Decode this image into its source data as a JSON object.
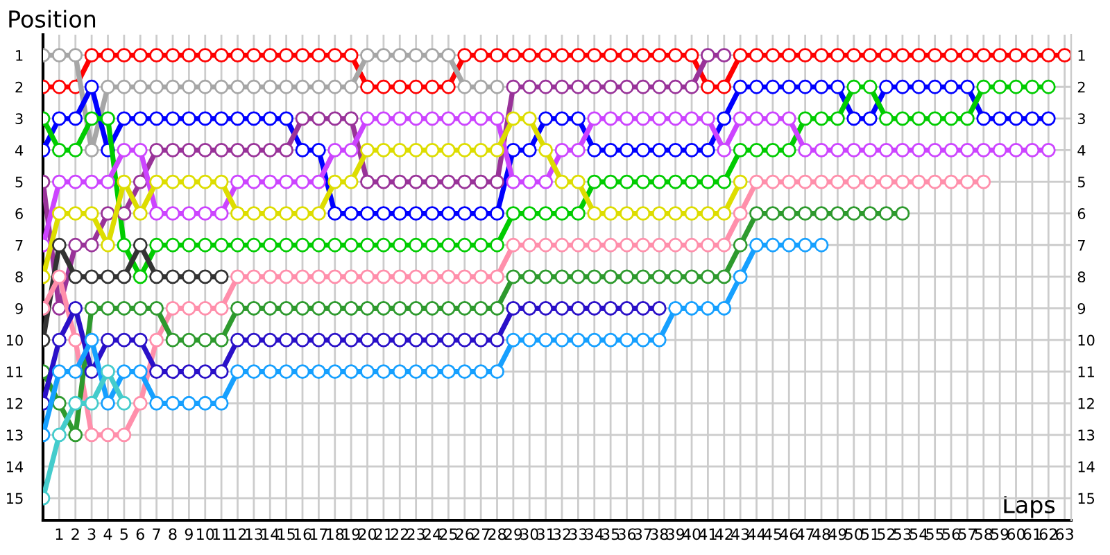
{
  "chart_data": {
    "type": "line",
    "xlabel": "Laps",
    "ylabel": "Position",
    "x": [
      0,
      1,
      2,
      3,
      4,
      5,
      6,
      7,
      8,
      9,
      10,
      11,
      12,
      13,
      14,
      15,
      16,
      17,
      18,
      19,
      20,
      21,
      22,
      23,
      24,
      25,
      26,
      27,
      28,
      29,
      30,
      31,
      32,
      33,
      34,
      35,
      36,
      37,
      38,
      39,
      40,
      41,
      42,
      43,
      44,
      45,
      46,
      47,
      48,
      49,
      50,
      51,
      52,
      53,
      54,
      55,
      56,
      57,
      58,
      59,
      60,
      61,
      62,
      63
    ],
    "xlim": [
      0,
      63.4
    ],
    "xticks": [
      1,
      2,
      3,
      4,
      5,
      6,
      7,
      8,
      9,
      10,
      11,
      12,
      13,
      14,
      15,
      16,
      17,
      18,
      19,
      20,
      21,
      22,
      23,
      24,
      25,
      26,
      27,
      28,
      29,
      30,
      31,
      32,
      33,
      34,
      35,
      36,
      37,
      38,
      39,
      40,
      41,
      42,
      43,
      44,
      45,
      46,
      47,
      48,
      49,
      50,
      51,
      52,
      53,
      54,
      55,
      56,
      57,
      58,
      59,
      60,
      61,
      62,
      63
    ],
    "ylim": [
      15.7,
      0.35
    ],
    "yticks": [
      1,
      2,
      3,
      4,
      5,
      6,
      7,
      8,
      9,
      10,
      11,
      12,
      13,
      14,
      15
    ],
    "y2lim": [
      15.7,
      0.35
    ],
    "y2ticks": [
      1,
      2,
      3,
      4,
      5,
      6,
      7,
      8,
      9,
      10,
      11,
      12,
      13,
      14,
      15
    ],
    "grid": true,
    "legend": false,
    "marker": "circle",
    "line_style": "solid",
    "series": [
      {
        "color": "#ff0000",
        "values": [
          2,
          2,
          2,
          1,
          1,
          1,
          1,
          1,
          1,
          1,
          1,
          1,
          1,
          1,
          1,
          1,
          1,
          1,
          1,
          1,
          2,
          2,
          2,
          2,
          2,
          2,
          1,
          1,
          1,
          1,
          1,
          1,
          1,
          1,
          1,
          1,
          1,
          1,
          1,
          1,
          1,
          2,
          2,
          1,
          1,
          1,
          1,
          1,
          1,
          1,
          1,
          1,
          1,
          1,
          1,
          1,
          1,
          1,
          1,
          1,
          1,
          1,
          1,
          1
        ]
      },
      {
        "color": "#a6a6a6",
        "values": [
          1,
          1,
          1,
          4,
          2,
          2,
          2,
          2,
          2,
          2,
          2,
          2,
          2,
          2,
          2,
          2,
          2,
          2,
          2,
          2,
          1,
          1,
          1,
          1,
          1,
          1,
          2,
          2,
          2,
          null,
          null,
          null,
          null,
          null,
          null,
          null,
          null,
          null,
          null,
          null,
          null,
          null,
          null,
          null,
          null,
          null,
          null,
          null,
          null,
          null,
          null,
          null,
          null,
          null,
          null,
          null,
          null,
          null,
          null,
          null,
          null,
          null,
          null,
          null
        ]
      },
      {
        "color": "#0000ff",
        "values": [
          4,
          3,
          3,
          2,
          4,
          3,
          3,
          3,
          3,
          3,
          3,
          3,
          3,
          3,
          3,
          3,
          4,
          4,
          6,
          6,
          6,
          6,
          6,
          6,
          6,
          6,
          6,
          6,
          6,
          4,
          4,
          3,
          3,
          3,
          4,
          4,
          4,
          4,
          4,
          4,
          4,
          4,
          3,
          2,
          2,
          2,
          2,
          2,
          2,
          2,
          3,
          3,
          2,
          2,
          2,
          2,
          2,
          2,
          3,
          3,
          3,
          3,
          3,
          null
        ]
      },
      {
        "color": "#00cc00",
        "values": [
          3,
          4,
          4,
          3,
          3,
          7,
          8,
          7,
          7,
          7,
          7,
          7,
          7,
          7,
          7,
          7,
          7,
          7,
          7,
          7,
          7,
          7,
          7,
          7,
          7,
          7,
          7,
          7,
          7,
          6,
          6,
          6,
          6,
          6,
          5,
          5,
          5,
          5,
          5,
          5,
          5,
          5,
          5,
          4,
          4,
          4,
          4,
          3,
          3,
          3,
          2,
          2,
          3,
          3,
          3,
          3,
          3,
          3,
          2,
          2,
          2,
          2,
          2,
          null
        ]
      },
      {
        "color": "#993399",
        "values": [
          5,
          9,
          7,
          7,
          6,
          6,
          5,
          4,
          4,
          4,
          4,
          4,
          4,
          4,
          4,
          4,
          3,
          3,
          3,
          3,
          5,
          5,
          5,
          5,
          5,
          5,
          5,
          5,
          5,
          2,
          2,
          2,
          2,
          2,
          2,
          2,
          2,
          2,
          2,
          2,
          2,
          1,
          1,
          null,
          null,
          null,
          null,
          null,
          null,
          null,
          null,
          null,
          null,
          null,
          null,
          null,
          null,
          null,
          null,
          null,
          null,
          null,
          null,
          null
        ]
      },
      {
        "color": "#cc44ff",
        "values": [
          7,
          5,
          5,
          5,
          5,
          4,
          4,
          6,
          6,
          6,
          6,
          6,
          5,
          5,
          5,
          5,
          5,
          5,
          4,
          4,
          3,
          3,
          3,
          3,
          3,
          3,
          3,
          3,
          3,
          5,
          5,
          5,
          4,
          4,
          3,
          3,
          3,
          3,
          3,
          3,
          3,
          3,
          4,
          3,
          3,
          3,
          3,
          4,
          4,
          4,
          4,
          4,
          4,
          4,
          4,
          4,
          4,
          4,
          4,
          4,
          4,
          4,
          4,
          null
        ]
      },
      {
        "color": "#dddd00",
        "values": [
          8,
          6,
          6,
          6,
          7,
          5,
          6,
          5,
          5,
          5,
          5,
          5,
          6,
          6,
          6,
          6,
          6,
          6,
          5,
          5,
          4,
          4,
          4,
          4,
          4,
          4,
          4,
          4,
          4,
          3,
          3,
          4,
          5,
          5,
          6,
          6,
          6,
          6,
          6,
          6,
          6,
          6,
          6,
          5,
          null,
          null,
          null,
          null,
          null,
          null,
          null,
          null,
          null,
          null,
          null,
          null,
          null,
          null,
          null,
          null,
          null,
          null,
          null,
          null
        ]
      },
      {
        "color": "#333333",
        "values": [
          10,
          7,
          8,
          8,
          8,
          8,
          7,
          8,
          8,
          8,
          8,
          8,
          null,
          null,
          null,
          null,
          null,
          null,
          null,
          null,
          null,
          null,
          null,
          null,
          null,
          null,
          null,
          null,
          null,
          null,
          null,
          null,
          null,
          null,
          null,
          null,
          null,
          null,
          null,
          null,
          null,
          null,
          null,
          null,
          null,
          null,
          null,
          null,
          null,
          null,
          null,
          null,
          null,
          null,
          null,
          null,
          null,
          null,
          null,
          null,
          null,
          null,
          null,
          null
        ]
      },
      {
        "color": "#ff8fab",
        "values": [
          9,
          8,
          10,
          13,
          13,
          13,
          12,
          10,
          9,
          9,
          9,
          9,
          8,
          8,
          8,
          8,
          8,
          8,
          8,
          8,
          8,
          8,
          8,
          8,
          8,
          8,
          8,
          8,
          8,
          7,
          7,
          7,
          7,
          7,
          7,
          7,
          7,
          7,
          7,
          7,
          7,
          7,
          7,
          6,
          5,
          5,
          5,
          5,
          5,
          5,
          5,
          5,
          5,
          5,
          5,
          5,
          5,
          5,
          5,
          null,
          null,
          null,
          null,
          null
        ]
      },
      {
        "color": "#2e9a2e",
        "values": [
          11,
          12,
          13,
          9,
          9,
          9,
          9,
          9,
          10,
          10,
          10,
          10,
          9,
          9,
          9,
          9,
          9,
          9,
          9,
          9,
          9,
          9,
          9,
          9,
          9,
          9,
          9,
          9,
          9,
          8,
          8,
          8,
          8,
          8,
          8,
          8,
          8,
          8,
          8,
          8,
          8,
          8,
          8,
          7,
          6,
          6,
          6,
          6,
          6,
          6,
          6,
          6,
          6,
          6,
          null,
          null,
          null,
          null,
          null,
          null,
          null,
          null,
          null,
          null
        ]
      },
      {
        "color": "#2a10c8",
        "values": [
          12,
          10,
          9,
          11,
          10,
          10,
          10,
          11,
          11,
          11,
          11,
          11,
          10,
          10,
          10,
          10,
          10,
          10,
          10,
          10,
          10,
          10,
          10,
          10,
          10,
          10,
          10,
          10,
          10,
          9,
          9,
          9,
          9,
          9,
          9,
          9,
          9,
          9,
          9,
          null,
          null,
          null,
          null,
          null,
          null,
          null,
          null,
          null,
          null,
          null,
          null,
          null,
          null,
          null,
          null,
          null,
          null,
          null,
          null,
          null,
          null,
          null,
          null,
          null
        ]
      },
      {
        "color": "#16a0ff",
        "values": [
          13,
          11,
          11,
          10,
          12,
          11,
          11,
          12,
          12,
          12,
          12,
          12,
          11,
          11,
          11,
          11,
          11,
          11,
          11,
          11,
          11,
          11,
          11,
          11,
          11,
          11,
          11,
          11,
          11,
          10,
          10,
          10,
          10,
          10,
          10,
          10,
          10,
          10,
          10,
          9,
          9,
          9,
          9,
          8,
          7,
          7,
          7,
          7,
          7,
          null,
          null,
          null,
          null,
          null,
          null,
          null,
          null,
          null,
          null,
          null,
          null,
          null,
          null,
          null
        ]
      },
      {
        "color": "#44cccc",
        "values": [
          15,
          13,
          12,
          12,
          11,
          12,
          null,
          null,
          null,
          null,
          null,
          null,
          null,
          null,
          null,
          null,
          null,
          null,
          null,
          null,
          null,
          null,
          null,
          null,
          null,
          null,
          null,
          null,
          null,
          null,
          null,
          null,
          null,
          null,
          null,
          null,
          null,
          null,
          null,
          null,
          null,
          null,
          null,
          null,
          null,
          null,
          null,
          null,
          null,
          null,
          null,
          null,
          null,
          null,
          null,
          null,
          null,
          null,
          null,
          null,
          null,
          null,
          null,
          null
        ]
      }
    ]
  }
}
